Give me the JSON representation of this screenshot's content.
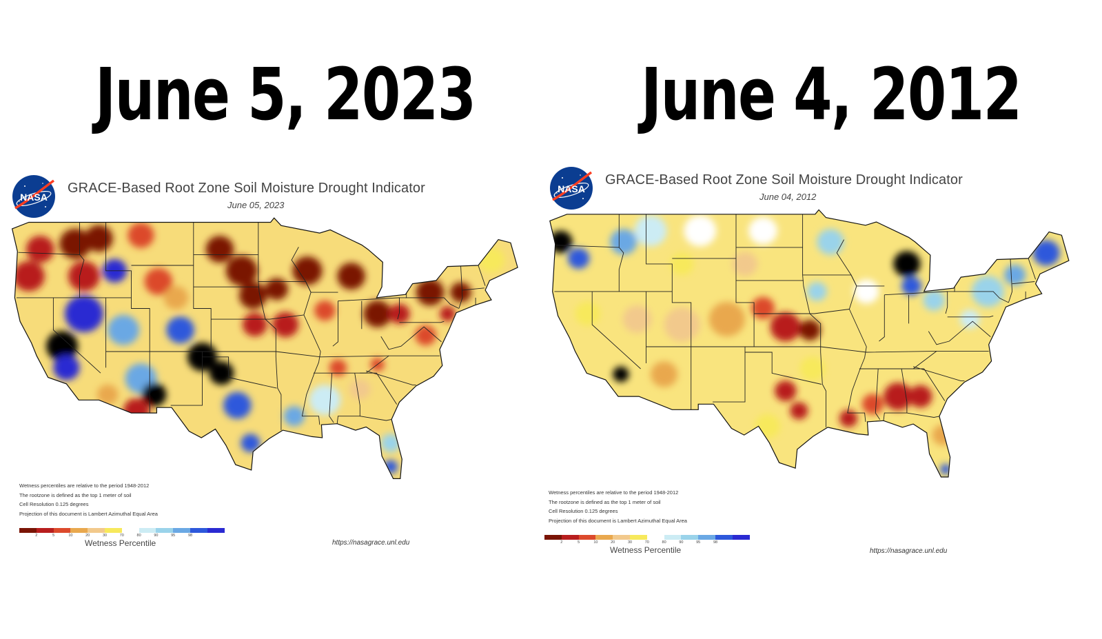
{
  "headlines": {
    "left": "June 5, 2023",
    "right": "June 4, 2012"
  },
  "maps": [
    {
      "logo_text": "NASA",
      "title": "GRACE-Based Root Zone Soil  Moisture Drought Indicator",
      "date": "June 05, 2023",
      "notes": [
        "Wetness percentiles are relative to the period 1948-2012",
        "The rootzone is defined as the top 1 meter of soil",
        "Cell Resolution 0.125 degrees",
        "Projection of this document is Lambert Azimuthal Equal Area"
      ],
      "legend_caption": "Wetness Percentile",
      "source_url": "https://nasagrace.unl.edu",
      "base_color": "#f7dc7a",
      "patches": [
        {
          "lon": -121.5,
          "lat": 46.5,
          "r": 1.6,
          "cls": 1
        },
        {
          "lon": -117.5,
          "lat": 47,
          "r": 1.8,
          "cls": 0
        },
        {
          "lon": -114.8,
          "lat": 47.5,
          "r": 1.6,
          "cls": 0
        },
        {
          "lon": -110,
          "lat": 47.8,
          "r": 1.5,
          "cls": 2
        },
        {
          "lon": -122.8,
          "lat": 44,
          "r": 1.8,
          "cls": 1
        },
        {
          "lon": -116.5,
          "lat": 44,
          "r": 1.8,
          "cls": 1
        },
        {
          "lon": -113,
          "lat": 44.5,
          "r": 1.4,
          "cls": 11
        },
        {
          "lon": -108,
          "lat": 43.5,
          "r": 1.6,
          "cls": 2
        },
        {
          "lon": -106,
          "lat": 42,
          "r": 1.4,
          "cls": 3
        },
        {
          "lon": -116.5,
          "lat": 40.5,
          "r": 2.2,
          "cls": 11
        },
        {
          "lon": -119,
          "lat": 37.5,
          "r": 1.8,
          "cls": 12
        },
        {
          "lon": -118.5,
          "lat": 35.5,
          "r": 1.5,
          "cls": 11
        },
        {
          "lon": -112,
          "lat": 39,
          "r": 1.8,
          "cls": 9
        },
        {
          "lon": -105.5,
          "lat": 39,
          "r": 1.6,
          "cls": 10
        },
        {
          "lon": -103,
          "lat": 36.5,
          "r": 1.7,
          "cls": 12
        },
        {
          "lon": -100.8,
          "lat": 35,
          "r": 1.4,
          "cls": 12
        },
        {
          "lon": -99,
          "lat": 32,
          "r": 1.6,
          "cls": 10
        },
        {
          "lon": -97.5,
          "lat": 28.5,
          "r": 1.1,
          "cls": 10
        },
        {
          "lon": -110,
          "lat": 34.5,
          "r": 1.8,
          "cls": 9
        },
        {
          "lon": -108.5,
          "lat": 33,
          "r": 1.4,
          "cls": 12
        },
        {
          "lon": -110.5,
          "lat": 31.5,
          "r": 1.5,
          "cls": 1
        },
        {
          "lon": -113.8,
          "lat": 33,
          "r": 1.2,
          "cls": 3
        },
        {
          "lon": -101,
          "lat": 46.5,
          "r": 1.6,
          "cls": 0
        },
        {
          "lon": -98.5,
          "lat": 44.5,
          "r": 1.8,
          "cls": 0
        },
        {
          "lon": -97.2,
          "lat": 42.2,
          "r": 1.6,
          "cls": 0
        },
        {
          "lon": -94.5,
          "lat": 42.8,
          "r": 1.3,
          "cls": 0
        },
        {
          "lon": -97,
          "lat": 39.5,
          "r": 1.4,
          "cls": 1
        },
        {
          "lon": -93.5,
          "lat": 39.5,
          "r": 1.5,
          "cls": 1
        },
        {
          "lon": -91,
          "lat": 44.5,
          "r": 1.7,
          "cls": 0
        },
        {
          "lon": -86,
          "lat": 44,
          "r": 1.6,
          "cls": 0
        },
        {
          "lon": -89,
          "lat": 40.8,
          "r": 1.2,
          "cls": 2
        },
        {
          "lon": -83,
          "lat": 40.5,
          "r": 1.6,
          "cls": 0
        },
        {
          "lon": -80.5,
          "lat": 40.5,
          "r": 1.2,
          "cls": 1
        },
        {
          "lon": -77,
          "lat": 42.5,
          "r": 1.6,
          "cls": 0
        },
        {
          "lon": -73.5,
          "lat": 42.5,
          "r": 1.2,
          "cls": 0
        },
        {
          "lon": -75,
          "lat": 40.5,
          "r": 0.9,
          "cls": 1
        },
        {
          "lon": -77.5,
          "lat": 38.5,
          "r": 1.2,
          "cls": 2
        },
        {
          "lon": -70,
          "lat": 45.5,
          "r": 1.5,
          "cls": 5
        },
        {
          "lon": -89,
          "lat": 32.5,
          "r": 1.8,
          "cls": 7
        },
        {
          "lon": -85,
          "lat": 33.5,
          "r": 1.2,
          "cls": 4
        },
        {
          "lon": -87.5,
          "lat": 35.5,
          "r": 1.0,
          "cls": 2
        },
        {
          "lon": -92.5,
          "lat": 31,
          "r": 1.2,
          "cls": 9
        },
        {
          "lon": -81.5,
          "lat": 28.5,
          "r": 1.1,
          "cls": 8
        },
        {
          "lon": -81.5,
          "lat": 26.3,
          "r": 0.8,
          "cls": 10
        },
        {
          "lon": -83,
          "lat": 35.8,
          "r": 0.8,
          "cls": 2
        }
      ]
    },
    {
      "logo_text": "NASA",
      "title": "GRACE-Based Root Zone Soil  Moisture Drought Indicator",
      "date": "June 04, 2012",
      "notes": [
        "Wetness percentiles are relative to the period 1948-2012",
        "The rootzone is defined as the top 1 meter of soil",
        "Cell Resolution 0.125 degrees",
        "Projection of this document is Lambert Azimuthal Equal Area"
      ],
      "legend_caption": "Wetness Percentile",
      "source_url": "https://nasagrace.unl.edu",
      "base_color": "#f9e47e",
      "patches": [
        {
          "lon": -123.5,
          "lat": 46.5,
          "r": 1.3,
          "cls": 12
        },
        {
          "lon": -121.5,
          "lat": 45,
          "r": 1.2,
          "cls": 10
        },
        {
          "lon": -116.5,
          "lat": 46.5,
          "r": 1.5,
          "cls": 9
        },
        {
          "lon": -113.5,
          "lat": 47.5,
          "r": 1.8,
          "cls": 7
        },
        {
          "lon": -108,
          "lat": 47.5,
          "r": 1.8,
          "cls": 6
        },
        {
          "lon": -101,
          "lat": 47.5,
          "r": 1.6,
          "cls": 6
        },
        {
          "lon": -93.5,
          "lat": 46.5,
          "r": 1.5,
          "cls": 8
        },
        {
          "lon": -85,
          "lat": 44.5,
          "r": 1.5,
          "cls": 12
        },
        {
          "lon": -84.5,
          "lat": 42.5,
          "r": 1.1,
          "cls": 10
        },
        {
          "lon": -89.5,
          "lat": 42,
          "r": 1.4,
          "cls": 6
        },
        {
          "lon": -82,
          "lat": 41.2,
          "r": 1.2,
          "cls": 8
        },
        {
          "lon": -76,
          "lat": 42,
          "r": 1.8,
          "cls": 8
        },
        {
          "lon": -73,
          "lat": 43.5,
          "r": 1.2,
          "cls": 9
        },
        {
          "lon": -69.5,
          "lat": 45.5,
          "r": 1.5,
          "cls": 10
        },
        {
          "lon": -78,
          "lat": 39.5,
          "r": 1.1,
          "cls": 7
        },
        {
          "lon": -98.5,
          "lat": 38.8,
          "r": 1.7,
          "cls": 1
        },
        {
          "lon": -95.8,
          "lat": 38.5,
          "r": 1.2,
          "cls": 0
        },
        {
          "lon": -101,
          "lat": 40.5,
          "r": 1.3,
          "cls": 2
        },
        {
          "lon": -105,
          "lat": 39.5,
          "r": 2.0,
          "cls": 3
        },
        {
          "lon": -110,
          "lat": 39,
          "r": 2.0,
          "cls": 4
        },
        {
          "lon": -115,
          "lat": 39.5,
          "r": 1.6,
          "cls": 4
        },
        {
          "lon": -112,
          "lat": 34.5,
          "r": 1.5,
          "cls": 3
        },
        {
          "lon": -116.8,
          "lat": 34.5,
          "r": 0.9,
          "cls": 12
        },
        {
          "lon": -98.5,
          "lat": 33,
          "r": 1.2,
          "cls": 1
        },
        {
          "lon": -97,
          "lat": 31.2,
          "r": 1.0,
          "cls": 1
        },
        {
          "lon": -100.5,
          "lat": 29.8,
          "r": 1.4,
          "cls": 5
        },
        {
          "lon": -95.5,
          "lat": 35,
          "r": 1.4,
          "cls": 5
        },
        {
          "lon": -86,
          "lat": 32.5,
          "r": 1.6,
          "cls": 1
        },
        {
          "lon": -83.5,
          "lat": 32.5,
          "r": 1.3,
          "cls": 1
        },
        {
          "lon": -91.5,
          "lat": 30.5,
          "r": 1.0,
          "cls": 1
        },
        {
          "lon": -88.8,
          "lat": 31.8,
          "r": 1.2,
          "cls": 2
        },
        {
          "lon": -81,
          "lat": 29,
          "r": 1.2,
          "cls": 3
        },
        {
          "lon": -80.7,
          "lat": 25.9,
          "r": 0.6,
          "cls": 10
        },
        {
          "lon": -110,
          "lat": 44.5,
          "r": 1.3,
          "cls": 5
        },
        {
          "lon": -120.5,
          "lat": 40,
          "r": 1.4,
          "cls": 5
        },
        {
          "lon": -103,
          "lat": 44.5,
          "r": 1.4,
          "cls": 4
        },
        {
          "lon": -95,
          "lat": 42,
          "r": 1.1,
          "cls": 8
        }
      ]
    }
  ],
  "legend": {
    "colors": [
      "#7a1405",
      "#b81e1e",
      "#dc4a2c",
      "#e9a84e",
      "#f2c98c",
      "#f7e95c",
      "#ffffff",
      "#ccecf4",
      "#9ad3ea",
      "#6aa8e4",
      "#2d58db",
      "#2a2ad2"
    ],
    "ticks": [
      "2",
      "5",
      "10",
      "20",
      "30",
      "70",
      "80",
      "90",
      "95",
      "98"
    ]
  }
}
